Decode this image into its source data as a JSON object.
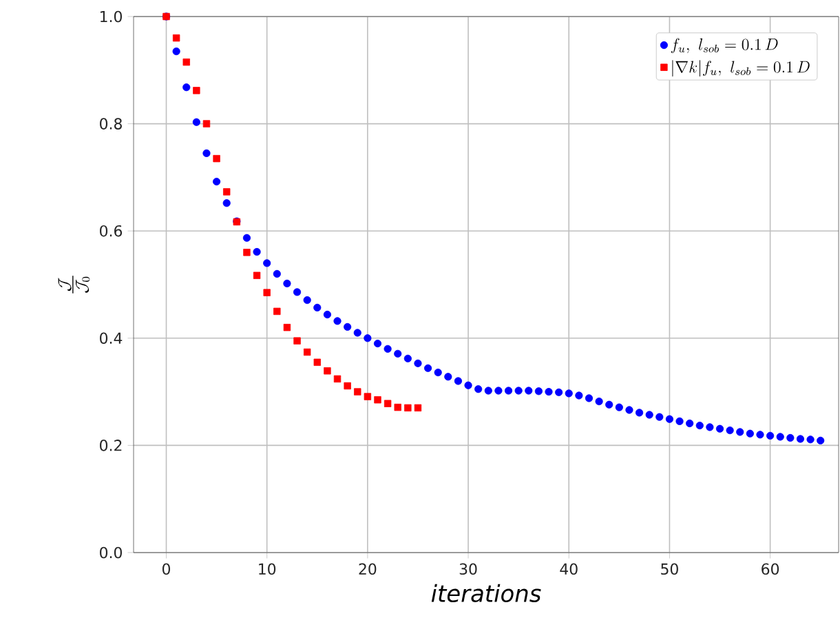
{
  "chart_data": {
    "type": "scatter",
    "xlabel": "iterations",
    "ylabel": "\\frac{\\mathcal{J}}{\\mathcal{J}_0}",
    "xlim": [
      -3.25,
      66.8
    ],
    "ylim": [
      0,
      1
    ],
    "xticks": [
      0,
      10,
      20,
      30,
      40,
      50,
      60
    ],
    "yticks": [
      {
        "value": 0,
        "label": "0.0"
      },
      {
        "value": 0.2,
        "label": "0.2"
      },
      {
        "value": 0.4,
        "label": "0.4"
      },
      {
        "value": 0.6,
        "label": "0.6"
      },
      {
        "value": 0.8,
        "label": "0.8"
      },
      {
        "value": 1,
        "label": "1.0"
      }
    ],
    "grid": true,
    "legend": "top right",
    "series": [
      {
        "name": "f_u,\\ l_{sob}=0.1\\,D",
        "color": "#0000ff",
        "marker": "circle",
        "x": [
          0,
          1,
          2,
          3,
          4,
          5,
          6,
          7,
          8,
          9,
          10,
          11,
          12,
          13,
          14,
          15,
          16,
          17,
          18,
          19,
          20,
          21,
          22,
          23,
          24,
          25,
          26,
          27,
          28,
          29,
          30,
          31,
          32,
          33,
          34,
          35,
          36,
          37,
          38,
          39,
          40,
          41,
          42,
          43,
          44,
          45,
          46,
          47,
          48,
          49,
          50,
          51,
          52,
          53,
          54,
          55,
          56,
          57,
          58,
          59,
          60,
          61,
          62,
          63,
          64,
          65
        ],
        "values": [
          1.0,
          0.935,
          0.868,
          0.803,
          0.745,
          0.692,
          0.652,
          0.618,
          0.587,
          0.561,
          0.54,
          0.52,
          0.502,
          0.486,
          0.471,
          0.457,
          0.444,
          0.432,
          0.421,
          0.41,
          0.4,
          0.39,
          0.38,
          0.371,
          0.362,
          0.353,
          0.344,
          0.336,
          0.328,
          0.32,
          0.312,
          0.305,
          0.302,
          0.302,
          0.302,
          0.302,
          0.302,
          0.301,
          0.3,
          0.299,
          0.297,
          0.293,
          0.288,
          0.282,
          0.276,
          0.271,
          0.266,
          0.261,
          0.257,
          0.253,
          0.249,
          0.245,
          0.241,
          0.237,
          0.234,
          0.231,
          0.228,
          0.225,
          0.222,
          0.22,
          0.218,
          0.216,
          0.214,
          0.212,
          0.211,
          0.209
        ]
      },
      {
        "name": "|\\nabla k| f_u,\\ l_{sob}=0.1\\,D",
        "color": "#ff0000",
        "marker": "square",
        "x": [
          0,
          1,
          2,
          3,
          4,
          5,
          6,
          7,
          8,
          9,
          10,
          11,
          12,
          13,
          14,
          15,
          16,
          17,
          18,
          19,
          20,
          21,
          22,
          23,
          24,
          25
        ],
        "values": [
          1.0,
          0.96,
          0.915,
          0.862,
          0.8,
          0.735,
          0.673,
          0.617,
          0.56,
          0.517,
          0.485,
          0.45,
          0.42,
          0.395,
          0.374,
          0.355,
          0.339,
          0.324,
          0.311,
          0.3,
          0.291,
          0.285,
          0.278,
          0.271,
          0.27,
          0.27
        ]
      }
    ]
  }
}
